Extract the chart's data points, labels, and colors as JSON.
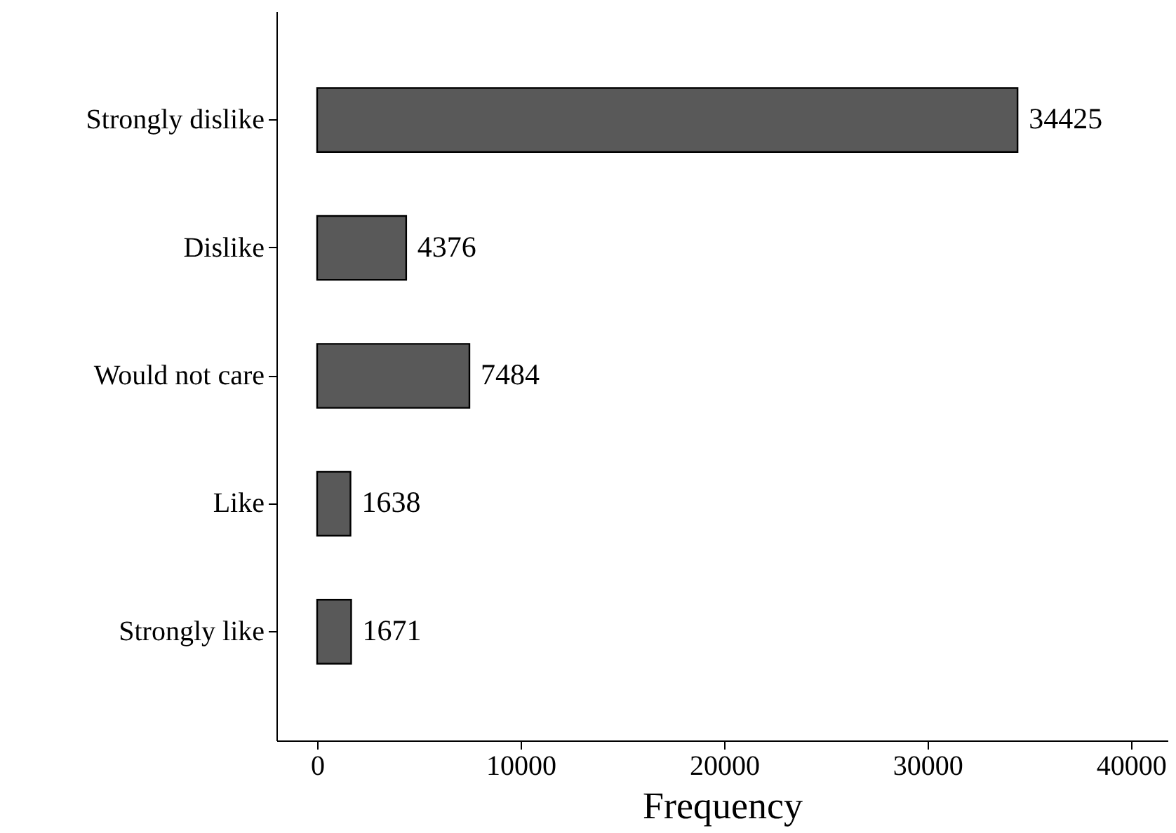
{
  "chart_data": {
    "type": "bar",
    "orientation": "horizontal",
    "xlabel": "Frequency",
    "categories": [
      "Strongly dislike",
      "Dislike",
      "Would not care",
      "Like",
      "Strongly like"
    ],
    "values": [
      34425,
      4376,
      7484,
      1638,
      1671
    ],
    "color": "#595959",
    "xlim": [
      -2000,
      41800
    ],
    "xticks": [
      0,
      10000,
      20000,
      30000,
      40000
    ],
    "data_labels": true,
    "grid": false
  }
}
